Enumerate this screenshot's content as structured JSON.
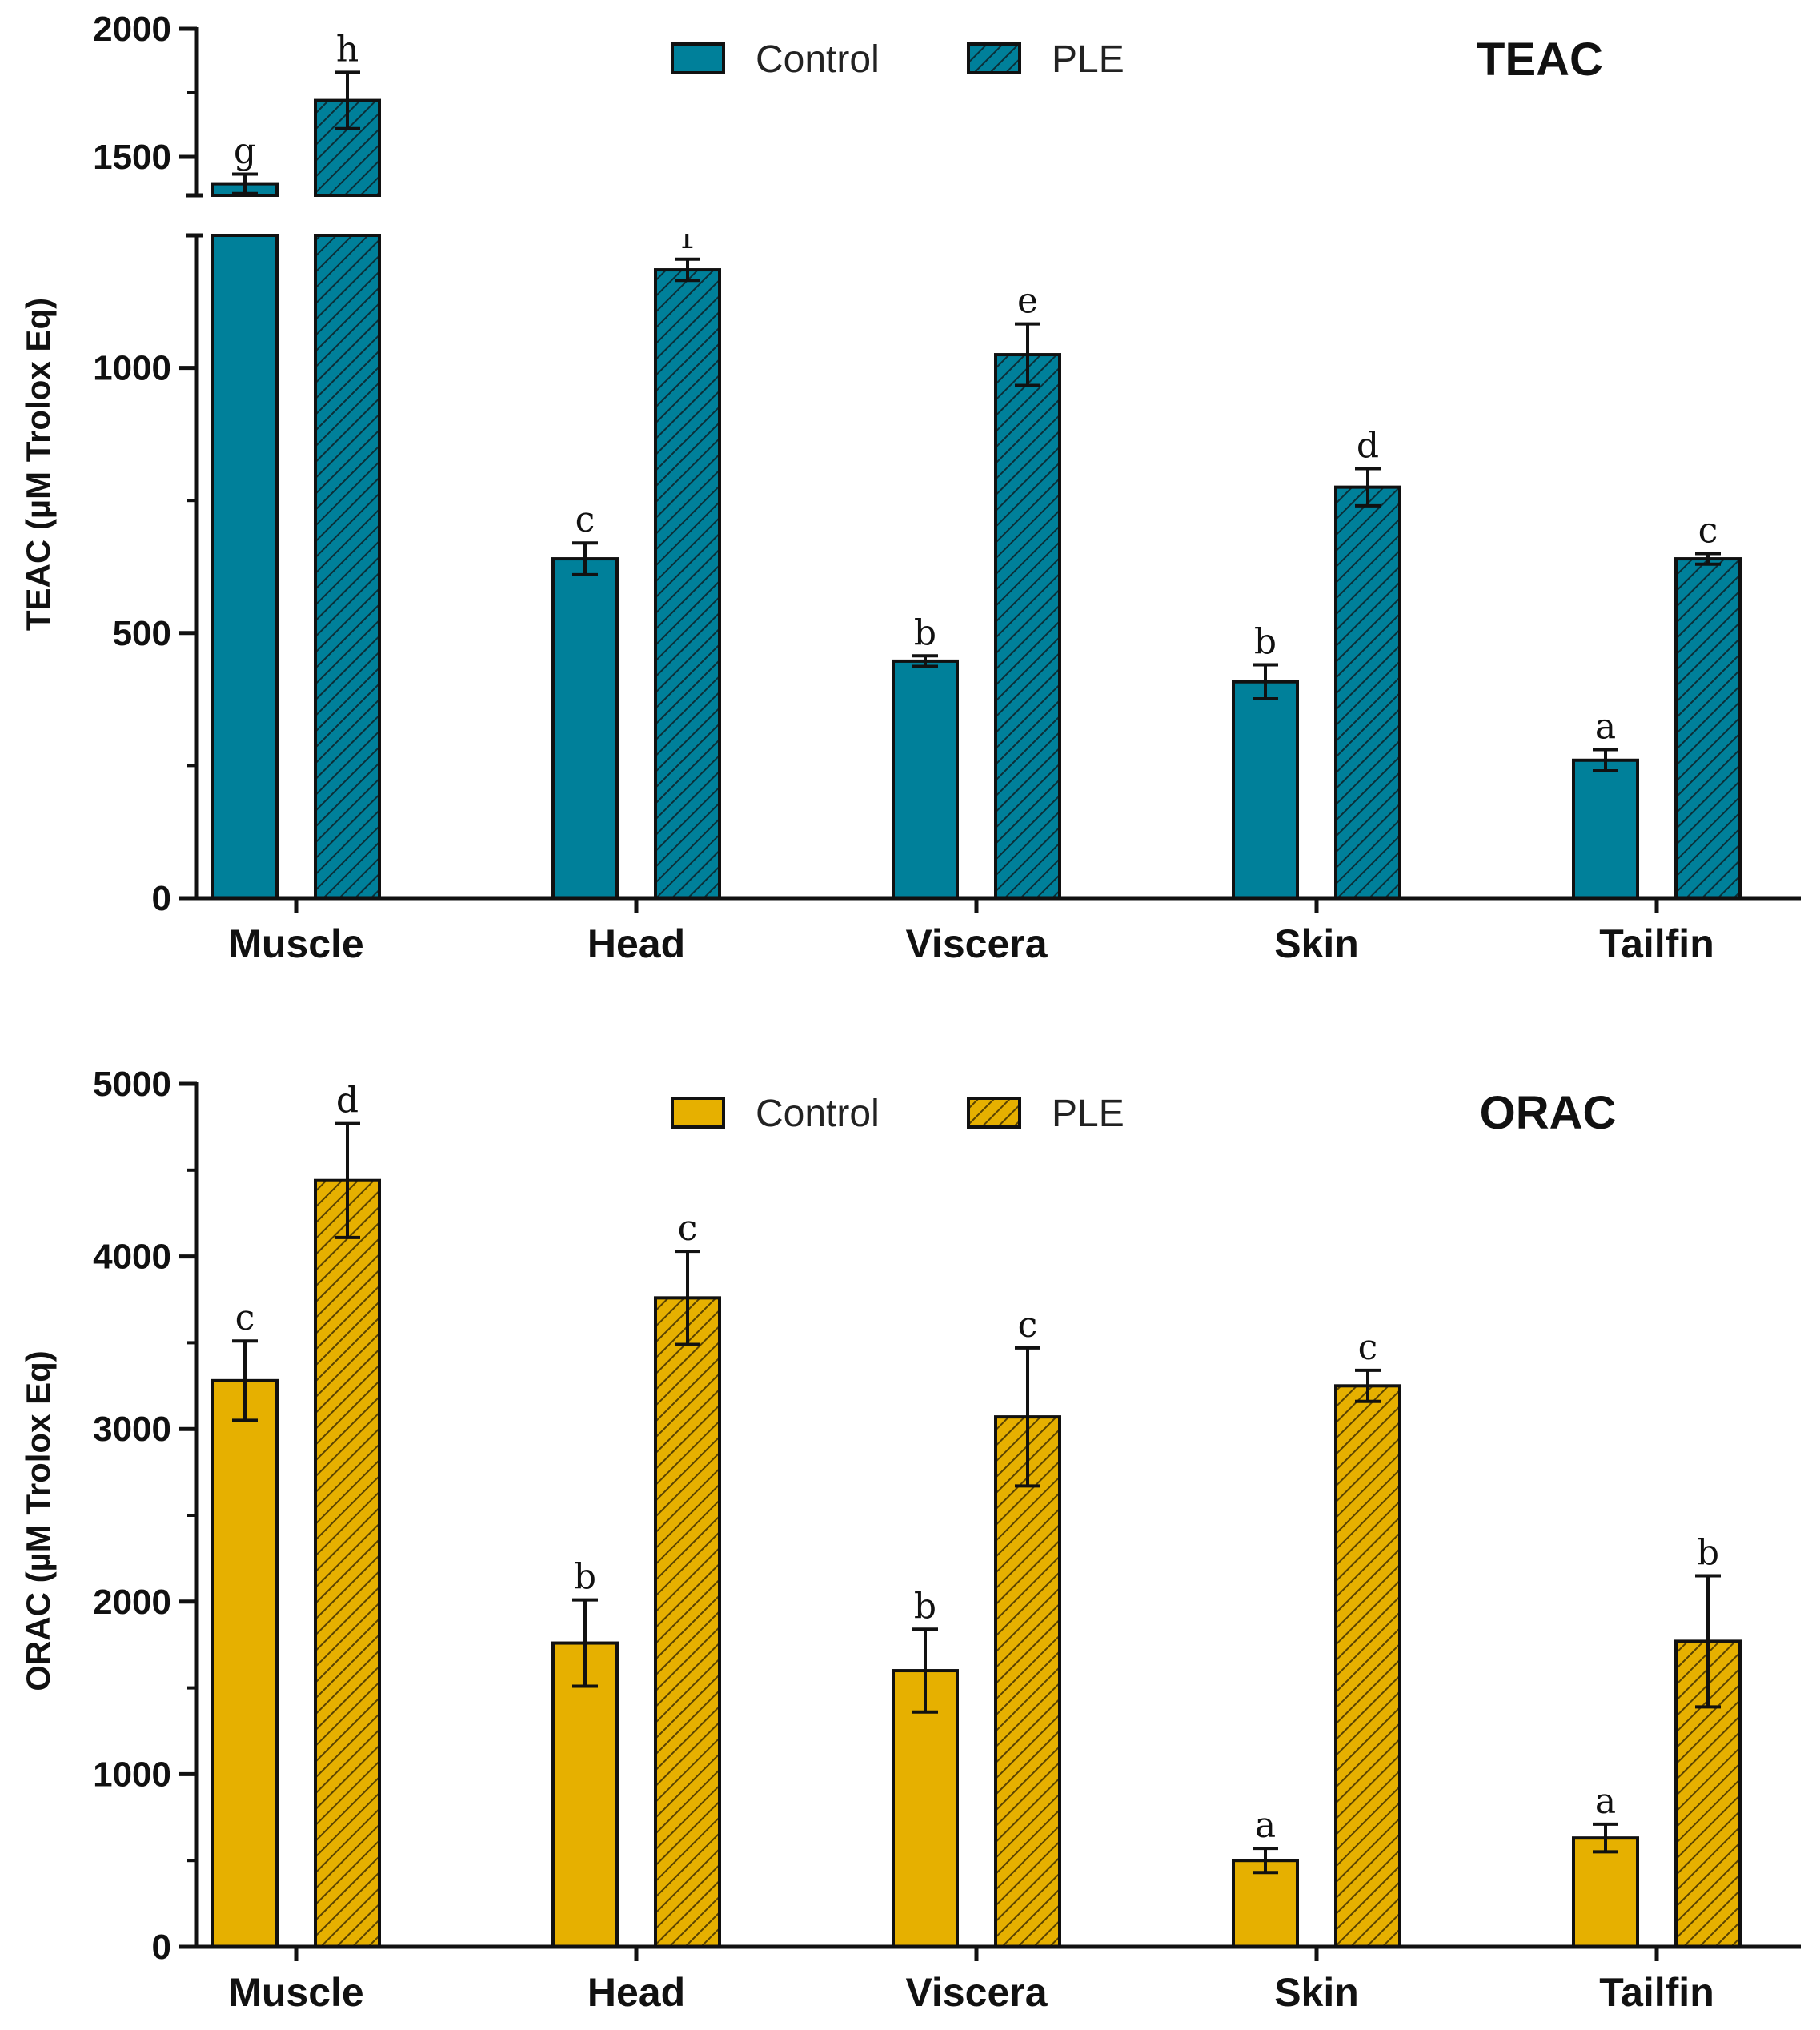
{
  "colors": {
    "teac": "#00809a",
    "orac": "#e6b000",
    "outline": "#111111"
  },
  "chart_data": [
    {
      "type": "bar",
      "title": "TEAC",
      "ylabel": "TEAC (µM Trolox Eq)",
      "xlabel": "",
      "ylim": [
        0,
        2000
      ],
      "axis_break": [
        1250,
        1350
      ],
      "yticks": [
        0,
        500,
        1000,
        1500,
        2000
      ],
      "categories": [
        "Muscle",
        "Head",
        "Viscera",
        "Skin",
        "Tailfin"
      ],
      "legend": [
        "Control",
        "PLE"
      ],
      "legend_position": "top-center",
      "series": [
        {
          "name": "Control",
          "pattern": "solid",
          "values": [
            1395,
            640,
            447,
            408,
            260
          ],
          "errors": [
            38,
            30,
            10,
            32,
            20
          ],
          "letters": [
            "g",
            "c",
            "b",
            "b",
            "a"
          ]
        },
        {
          "name": "PLE",
          "pattern": "hatched",
          "values": [
            1720,
            1185,
            1025,
            775,
            640
          ],
          "errors": [
            110,
            20,
            58,
            35,
            10
          ],
          "letters": [
            "h",
            "f",
            "e",
            "d",
            "c"
          ]
        }
      ]
    },
    {
      "type": "bar",
      "title": "ORAC",
      "ylabel": "ORAC (µM Trolox Eq)",
      "xlabel": "",
      "ylim": [
        0,
        5000
      ],
      "yticks": [
        0,
        1000,
        2000,
        3000,
        4000,
        5000
      ],
      "categories": [
        "Muscle",
        "Head",
        "Viscera",
        "Skin",
        "Tailfin"
      ],
      "legend": [
        "Control",
        "PLE"
      ],
      "legend_position": "top-center",
      "series": [
        {
          "name": "Control",
          "pattern": "solid",
          "values": [
            3280,
            1760,
            1600,
            500,
            630
          ],
          "errors": [
            230,
            250,
            240,
            70,
            80
          ],
          "letters": [
            "c",
            "b",
            "b",
            "a",
            "a"
          ]
        },
        {
          "name": "PLE",
          "pattern": "hatched",
          "values": [
            4440,
            3760,
            3070,
            3250,
            1770
          ],
          "errors": [
            330,
            270,
            400,
            90,
            380
          ],
          "letters": [
            "d",
            "c",
            "c",
            "c",
            "b"
          ]
        }
      ]
    }
  ]
}
